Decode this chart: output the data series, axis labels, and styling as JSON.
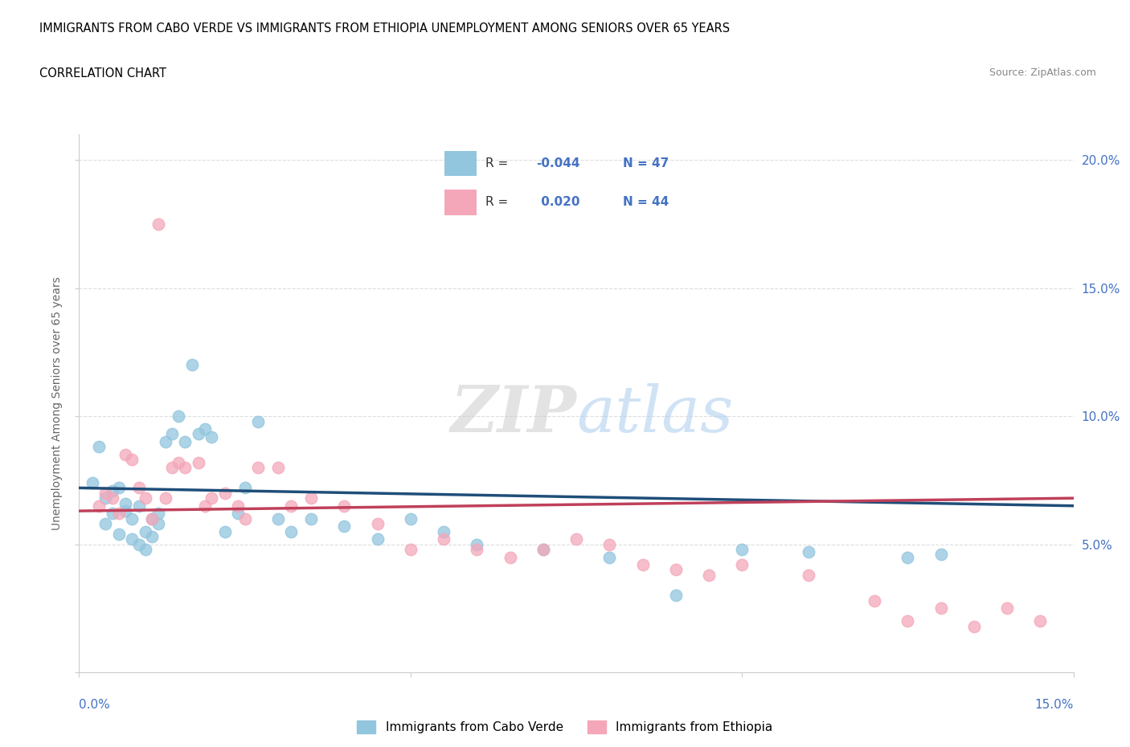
{
  "title_line1": "IMMIGRANTS FROM CABO VERDE VS IMMIGRANTS FROM ETHIOPIA UNEMPLOYMENT AMONG SENIORS OVER 65 YEARS",
  "title_line2": "CORRELATION CHART",
  "source": "Source: ZipAtlas.com",
  "ylabel": "Unemployment Among Seniors over 65 years",
  "legend_label1": "Immigrants from Cabo Verde",
  "legend_label2": "Immigrants from Ethiopia",
  "R1": -0.044,
  "N1": 47,
  "R2": 0.02,
  "N2": 44,
  "xlim": [
    0.0,
    0.15
  ],
  "ylim": [
    0.0,
    0.21
  ],
  "xticks": [
    0.0,
    0.05,
    0.1,
    0.15
  ],
  "xtick_labels": [
    "0.0%",
    "",
    "",
    "15.0%"
  ],
  "yticks": [
    0.0,
    0.05,
    0.1,
    0.15,
    0.2
  ],
  "ytick_labels_right": [
    "",
    "5.0%",
    "10.0%",
    "15.0%",
    "20.0%"
  ],
  "color_blue": "#92C5DE",
  "color_pink": "#F4A7B9",
  "line_color_blue": "#1F4E79",
  "line_color_pink": "#C0405A",
  "watermark_zip": "ZIP",
  "watermark_atlas": "atlas",
  "cabo_verde_x": [
    0.002,
    0.003,
    0.004,
    0.004,
    0.005,
    0.005,
    0.006,
    0.006,
    0.007,
    0.007,
    0.008,
    0.008,
    0.009,
    0.009,
    0.01,
    0.01,
    0.011,
    0.011,
    0.012,
    0.012,
    0.013,
    0.014,
    0.015,
    0.016,
    0.017,
    0.018,
    0.019,
    0.02,
    0.022,
    0.024,
    0.025,
    0.027,
    0.03,
    0.032,
    0.035,
    0.04,
    0.045,
    0.05,
    0.055,
    0.06,
    0.07,
    0.08,
    0.09,
    0.1,
    0.11,
    0.125,
    0.13
  ],
  "cabo_verde_y": [
    0.074,
    0.088,
    0.068,
    0.058,
    0.071,
    0.062,
    0.072,
    0.054,
    0.066,
    0.063,
    0.052,
    0.06,
    0.065,
    0.05,
    0.055,
    0.048,
    0.06,
    0.053,
    0.062,
    0.058,
    0.09,
    0.093,
    0.1,
    0.09,
    0.12,
    0.093,
    0.095,
    0.092,
    0.055,
    0.062,
    0.072,
    0.098,
    0.06,
    0.055,
    0.06,
    0.057,
    0.052,
    0.06,
    0.055,
    0.05,
    0.048,
    0.045,
    0.03,
    0.048,
    0.047,
    0.045,
    0.046
  ],
  "ethiopia_x": [
    0.003,
    0.004,
    0.005,
    0.006,
    0.007,
    0.008,
    0.009,
    0.01,
    0.011,
    0.012,
    0.013,
    0.014,
    0.015,
    0.016,
    0.018,
    0.019,
    0.02,
    0.022,
    0.024,
    0.025,
    0.027,
    0.03,
    0.032,
    0.035,
    0.04,
    0.045,
    0.05,
    0.055,
    0.06,
    0.065,
    0.07,
    0.075,
    0.08,
    0.085,
    0.09,
    0.095,
    0.1,
    0.11,
    0.12,
    0.125,
    0.13,
    0.135,
    0.14,
    0.145
  ],
  "ethiopia_y": [
    0.065,
    0.07,
    0.068,
    0.062,
    0.085,
    0.083,
    0.072,
    0.068,
    0.06,
    0.175,
    0.068,
    0.08,
    0.082,
    0.08,
    0.082,
    0.065,
    0.068,
    0.07,
    0.065,
    0.06,
    0.08,
    0.08,
    0.065,
    0.068,
    0.065,
    0.058,
    0.048,
    0.052,
    0.048,
    0.045,
    0.048,
    0.052,
    0.05,
    0.042,
    0.04,
    0.038,
    0.042,
    0.038,
    0.028,
    0.02,
    0.025,
    0.018,
    0.025,
    0.02
  ]
}
